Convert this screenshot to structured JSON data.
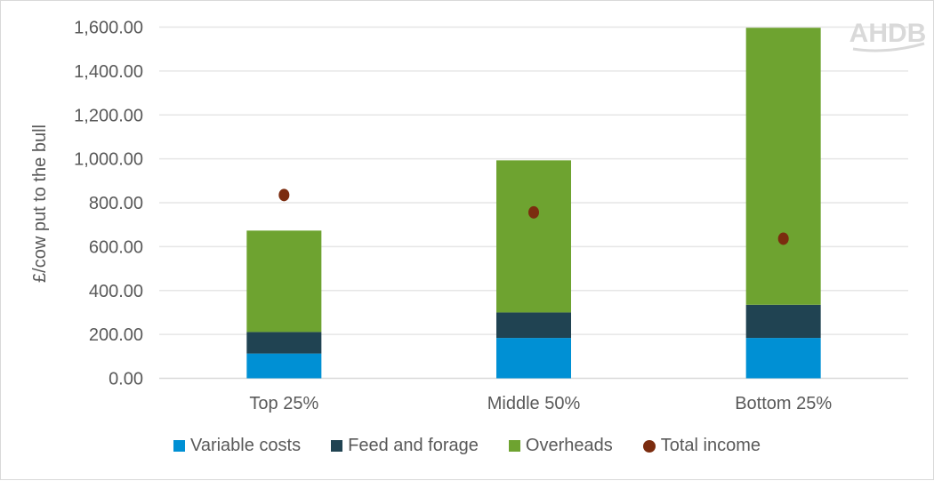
{
  "chart_data": {
    "type": "bar",
    "stacked": true,
    "categories": [
      "Top 25%",
      "Middle 50%",
      "Bottom 25%"
    ],
    "series": [
      {
        "name": "Variable costs",
        "kind": "bar",
        "color": "#0090d4",
        "values": [
          113,
          184,
          184
        ]
      },
      {
        "name": "Feed and forage",
        "kind": "bar",
        "color": "#204352",
        "values": [
          98,
          116,
          151
        ]
      },
      {
        "name": "Overheads",
        "kind": "bar",
        "color": "#6ea330",
        "values": [
          462,
          693,
          1262
        ]
      },
      {
        "name": "Total income",
        "kind": "scatter",
        "color": "#7b2c0f",
        "values": [
          835,
          756,
          636
        ]
      }
    ],
    "ylabel": "£/cow put to the bull",
    "xlabel": "",
    "ylim": [
      0,
      1600
    ],
    "yticks": [
      "0.00",
      "200.00",
      "400.00",
      "600.00",
      "800.00",
      "1,000.00",
      "1,200.00",
      "1,400.00",
      "1,600.00"
    ],
    "grid": true,
    "legend": "bottom"
  },
  "logo": "AHDB"
}
